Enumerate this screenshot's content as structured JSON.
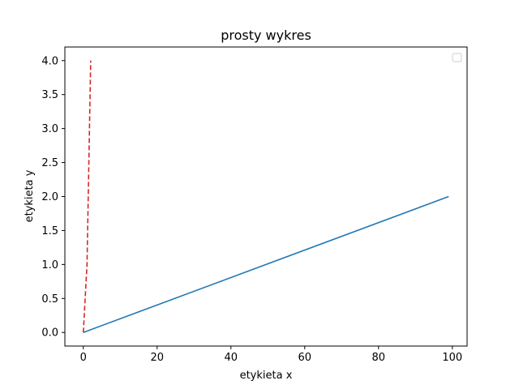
{
  "chart_data": {
    "type": "line",
    "title": "prosty wykres",
    "xlabel": "etykieta x",
    "ylabel": "etykieta y",
    "xlim": [
      -5,
      104
    ],
    "ylim": [
      -0.2,
      4.2
    ],
    "xticks": [
      0,
      20,
      40,
      60,
      80,
      100
    ],
    "xtick_labels": [
      "0",
      "20",
      "40",
      "60",
      "80",
      "100"
    ],
    "yticks": [
      0.0,
      0.5,
      1.0,
      1.5,
      2.0,
      2.5,
      3.0,
      3.5,
      4.0
    ],
    "ytick_labels": [
      "0.0",
      "0.5",
      "1.0",
      "1.5",
      "2.0",
      "2.5",
      "3.0",
      "3.5",
      "4.0"
    ],
    "grid": false,
    "legend": {
      "placement": "top-right",
      "entries": []
    },
    "series": [
      {
        "x": [
          0,
          99
        ],
        "y": [
          0,
          2
        ],
        "color": "#1f77b4",
        "style": "solid"
      },
      {
        "x": [
          0,
          1,
          2
        ],
        "y": [
          0,
          1,
          4
        ],
        "color": "#d62728",
        "style": "dashed"
      }
    ]
  }
}
